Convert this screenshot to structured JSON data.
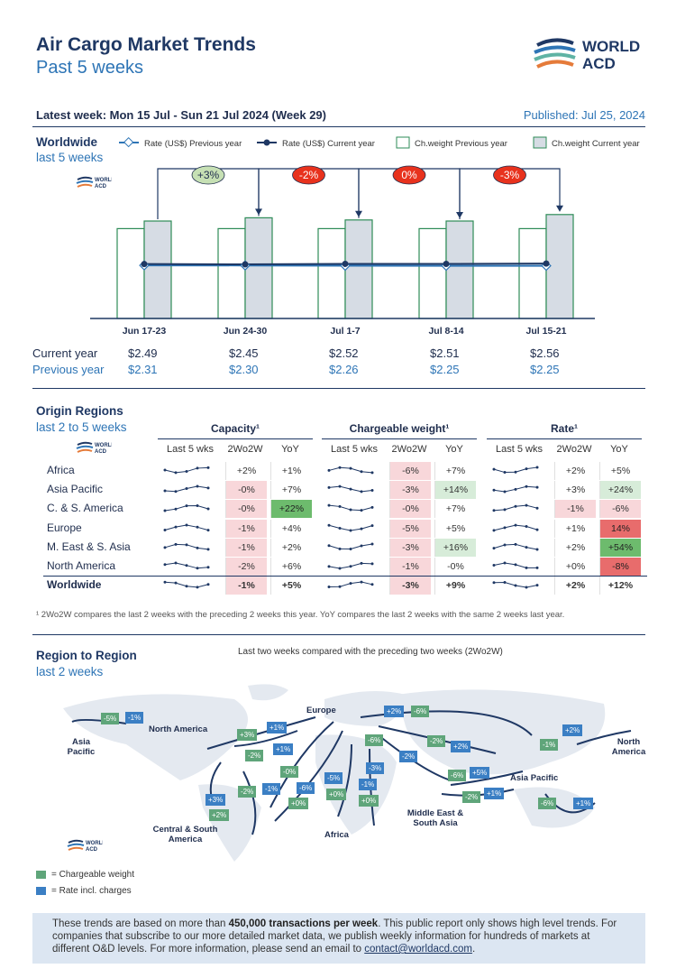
{
  "header": {
    "title": "Air Cargo Market Trends",
    "subtitle": "Past 5 weeks",
    "logo_text": "WORLD ACD"
  },
  "latest_week": "Latest week:  Mon 15 Jul - Sun 21 Jul 2024 (Week 29)",
  "published": "Published: Jul 25, 2024",
  "worldwide": {
    "heading": "Worldwide",
    "subheading": "last 5 weeks"
  },
  "colors": {
    "navy": "#1f3864",
    "blue": "#2e75b6",
    "bar_prev": "#ffffff",
    "bar_curr": "#d6dce4",
    "bar_stroke": "#2e8b57",
    "pos_badge": "#c6e0b4",
    "neg_badge": "#ff0000",
    "green_cell": "#5cb85c",
    "red_cell": "#e06060"
  },
  "chart_data": {
    "type": "bar",
    "categories": [
      "Jun 17-23",
      "Jun 24-30",
      "Jul 1-7",
      "Jul 8-14",
      "Jul 15-21"
    ],
    "series": [
      {
        "name": "Ch.weight Previous year",
        "values": [
          0.83,
          0.83,
          0.83,
          0.83,
          0.83
        ]
      },
      {
        "name": "Ch.weight Current year",
        "values": [
          0.9,
          0.93,
          0.91,
          0.9,
          0.96
        ]
      },
      {
        "name": "Rate (US$) Previous year",
        "values": [
          2.31,
          2.3,
          2.26,
          2.25,
          2.25
        ]
      },
      {
        "name": "Rate (US$) Current year",
        "values": [
          2.49,
          2.45,
          2.52,
          2.51,
          2.56
        ]
      }
    ],
    "changes": [
      {
        "label": "+3%",
        "positive": true
      },
      {
        "label": "-2%",
        "positive": false
      },
      {
        "label": "0%",
        "positive": false
      },
      {
        "label": "-3%",
        "positive": false
      }
    ],
    "legend": [
      "Rate (US$) Previous year",
      "Rate (US$) Current year",
      "Ch.weight Previous year",
      "Ch.weight Current year"
    ],
    "legend_position": "top",
    "current_year_label": "Current year",
    "previous_year_label": "Previous year",
    "current_rates": [
      "$2.49",
      "$2.45",
      "$2.52",
      "$2.51",
      "$2.56"
    ],
    "previous_rates": [
      "$2.31",
      "$2.30",
      "$2.26",
      "$2.25",
      "$2.25"
    ]
  },
  "origin": {
    "heading": "Origin Regions",
    "subheading": "last 2 to 5 weeks",
    "groups": [
      "Capacity¹",
      "Chargeable weight¹",
      "Rate¹"
    ],
    "cols": [
      "Last 5 wks",
      "2Wo2W",
      "YoY"
    ],
    "rows": [
      {
        "name": "Africa",
        "cap": [
          "+2%",
          "+1%"
        ],
        "cw": [
          "-6%",
          "+7%"
        ],
        "rate": [
          "+2%",
          "+5%"
        ],
        "cls": [
          "",
          "",
          "r",
          "",
          "",
          ""
        ]
      },
      {
        "name": "Asia Pacific",
        "cap": [
          "-0%",
          "+7%"
        ],
        "cw": [
          "-3%",
          "+14%"
        ],
        "rate": [
          "+3%",
          "+24%"
        ],
        "cls": [
          "r",
          "",
          "r",
          "g",
          "",
          "g"
        ]
      },
      {
        "name": "C. & S. America",
        "cap": [
          "-0%",
          "+22%"
        ],
        "cw": [
          "-0%",
          "+7%"
        ],
        "rate": [
          "-1%",
          "-6%"
        ],
        "cls": [
          "r",
          "G",
          "r",
          "",
          "r",
          "r"
        ]
      },
      {
        "name": "Europe",
        "cap": [
          "-1%",
          "+4%"
        ],
        "cw": [
          "-5%",
          "+5%"
        ],
        "rate": [
          "+1%",
          "14%"
        ],
        "cls": [
          "r",
          "",
          "r",
          "",
          "",
          "R"
        ]
      },
      {
        "name": "M. East & S. Asia",
        "cap": [
          "-1%",
          "+2%"
        ],
        "cw": [
          "-3%",
          "+16%"
        ],
        "rate": [
          "+2%",
          "+54%"
        ],
        "cls": [
          "r",
          "",
          "r",
          "g",
          "",
          "G"
        ]
      },
      {
        "name": "North America",
        "cap": [
          "-2%",
          "+6%"
        ],
        "cw": [
          "-1%",
          "-0%"
        ],
        "rate": [
          "+0%",
          "-8%"
        ],
        "cls": [
          "r",
          "",
          "r",
          "",
          "",
          "R"
        ]
      },
      {
        "name": "Worldwide",
        "cap": [
          "-1%",
          "+5%"
        ],
        "cw": [
          "-3%",
          "+9%"
        ],
        "rate": [
          "+2%",
          "+12%"
        ],
        "cls": [
          "r",
          "",
          "r",
          "",
          "",
          ""
        ]
      }
    ],
    "footnote": "¹ 2Wo2W compares the last 2 weeks with the preceding 2 weeks this year. YoY compares the last 2 weeks with the same 2 weeks last year."
  },
  "r2r": {
    "heading": "Region to Region",
    "subheading": "last 2 weeks",
    "caption": "Last two weeks compared with the preceding two weeks (2Wo2W)",
    "regions": [
      "Europe",
      "North America",
      "Asia Pacific",
      "North America",
      "Asia Pacific",
      "Middle East & South Asia",
      "Central & South America",
      "Africa"
    ],
    "badges": [
      "-5%",
      "-1%",
      "+3%",
      "+1%",
      "-2%",
      "+1%",
      "-0%",
      "-6%",
      "+0%",
      "-1%",
      "-2%",
      "+3%",
      "+2%",
      "-5%",
      "+0%",
      "-1%",
      "+0%",
      "-3%",
      "-6%",
      "+2%",
      "-6%",
      "-2%",
      "-2%",
      "+2%",
      "-6%",
      "+5%",
      "-2%",
      "+1%",
      "-1%",
      "+2%",
      "-6%",
      "+1%"
    ],
    "legend": [
      "= Chargeable weight",
      "= Rate incl. charges"
    ]
  },
  "footer": {
    "p1": "These trends are based on more than ",
    "bold": "450,000 transactions per week",
    "p2": ". This public report only shows high level trends. For companies that subscribe to our more detailed market data, we publish weekly information for hundreds of markets at different O&D levels. For more information, please send an email to ",
    "email": "contact@worldacd.com",
    "p3": "."
  }
}
